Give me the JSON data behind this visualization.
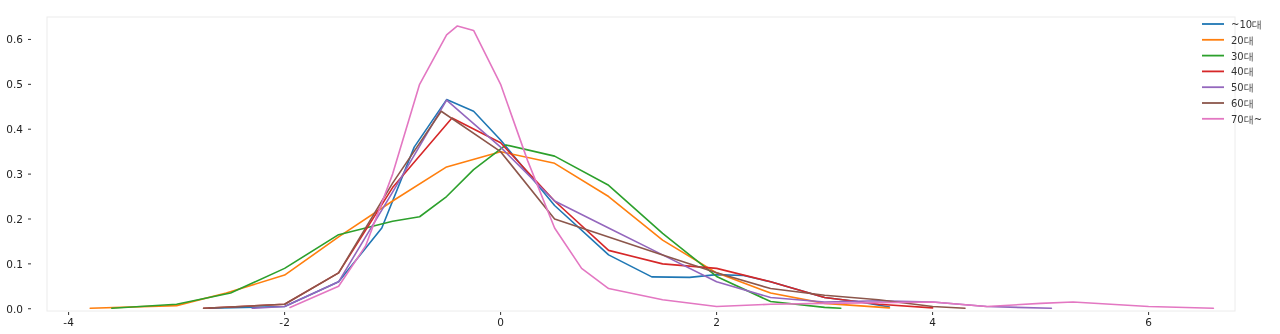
{
  "chart_data": {
    "type": "line",
    "xlim": [
      -4.2,
      6.8
    ],
    "ylim": [
      -0.005,
      0.65
    ],
    "xticks": [
      -4,
      -2,
      0,
      2,
      4,
      6
    ],
    "yticks": [
      {
        "value": 0,
        "label": "0.0"
      },
      {
        "value": 0.1,
        "label": "0.1"
      },
      {
        "value": 0.2,
        "label": "0.2"
      },
      {
        "value": 0.3,
        "label": "0.3"
      },
      {
        "value": 0.4,
        "label": "0.4"
      },
      {
        "value": 0.5,
        "label": "0.5"
      },
      {
        "value": 0.6,
        "label": "0.6"
      }
    ],
    "legend": "top right",
    "grid": false,
    "line_style": "solid",
    "marker": "none",
    "series": [
      {
        "name": "~10대",
        "color": "#1f77b4",
        "x": [
          -2.7,
          -2.0,
          -1.5,
          -1.1,
          -0.8,
          -0.5,
          -0.25,
          0,
          0.5,
          1.0,
          1.4,
          1.75,
          2.0,
          2.25,
          2.5,
          3.0,
          3.3,
          3.6
        ],
        "values": [
          0.001,
          0.005,
          0.06,
          0.18,
          0.36,
          0.466,
          0.44,
          0.376,
          0.23,
          0.12,
          0.071,
          0.07,
          0.076,
          0.074,
          0.06,
          0.025,
          0.016,
          0.004
        ]
      },
      {
        "name": "20대",
        "color": "#ff7f0e",
        "x": [
          -3.8,
          -3.0,
          -2.54,
          -2.0,
          -1.5,
          -1.0,
          -0.5,
          0,
          0.5,
          1.0,
          1.5,
          2.0,
          2.5,
          3.0,
          3.6
        ],
        "values": [
          0.001,
          0.007,
          0.035,
          0.075,
          0.16,
          0.24,
          0.316,
          0.35,
          0.324,
          0.25,
          0.153,
          0.08,
          0.035,
          0.012,
          0.002
        ]
      },
      {
        "name": "30대",
        "color": "#2ca02c",
        "x": [
          -3.6,
          -3.0,
          -2.5,
          -2.0,
          -1.5,
          -1.25,
          -1.0,
          -0.75,
          -0.5,
          -0.25,
          0.05,
          0.5,
          1.0,
          1.5,
          2.0,
          2.5,
          3.0,
          3.15
        ],
        "values": [
          0.001,
          0.01,
          0.035,
          0.09,
          0.165,
          0.18,
          0.195,
          0.205,
          0.25,
          0.31,
          0.365,
          0.34,
          0.275,
          0.168,
          0.072,
          0.016,
          0.003,
          0.001
        ]
      },
      {
        "name": "40대",
        "color": "#d62728",
        "x": [
          -2.75,
          -2.0,
          -1.5,
          -1.0,
          -0.45,
          0,
          0.5,
          1.0,
          1.5,
          2.0,
          2.5,
          3.0,
          3.5,
          4.0
        ],
        "values": [
          0.001,
          0.01,
          0.08,
          0.27,
          0.425,
          0.37,
          0.24,
          0.13,
          0.1,
          0.09,
          0.06,
          0.025,
          0.01,
          0.002
        ]
      },
      {
        "name": "50대",
        "color": "#9467bd",
        "x": [
          -2.3,
          -2.0,
          -1.5,
          -1.0,
          -0.5,
          0,
          0.5,
          1.0,
          1.5,
          2.0,
          2.5,
          3.0,
          3.5,
          4.0,
          4.5,
          5.1
        ],
        "values": [
          0.001,
          0.005,
          0.06,
          0.26,
          0.465,
          0.36,
          0.24,
          0.18,
          0.12,
          0.06,
          0.025,
          0.015,
          0.018,
          0.015,
          0.005,
          0.001
        ]
      },
      {
        "name": "60대",
        "color": "#8c564b",
        "x": [
          -2.75,
          -2.0,
          -1.5,
          -1.0,
          -0.55,
          0,
          0.5,
          1.0,
          1.5,
          2.0,
          2.5,
          3.0,
          3.5,
          4.0,
          4.3
        ],
        "values": [
          0.001,
          0.01,
          0.08,
          0.28,
          0.44,
          0.35,
          0.2,
          0.16,
          0.12,
          0.08,
          0.045,
          0.03,
          0.02,
          0.005,
          0.001
        ]
      },
      {
        "name": "70대~",
        "color": "#e377c2",
        "x": [
          -1.95,
          -1.5,
          -1.25,
          -1.0,
          -0.75,
          -0.5,
          -0.4,
          -0.25,
          0,
          0.25,
          0.5,
          0.75,
          1.0,
          1.5,
          2.0,
          2.5,
          3.0,
          4.0,
          4.5,
          5.0,
          5.3,
          6.0,
          6.6
        ],
        "values": [
          0.003,
          0.05,
          0.14,
          0.3,
          0.5,
          0.61,
          0.63,
          0.62,
          0.5,
          0.33,
          0.18,
          0.09,
          0.045,
          0.02,
          0.005,
          0.01,
          0.012,
          0.015,
          0.005,
          0.012,
          0.015,
          0.005,
          0.001
        ]
      }
    ]
  }
}
